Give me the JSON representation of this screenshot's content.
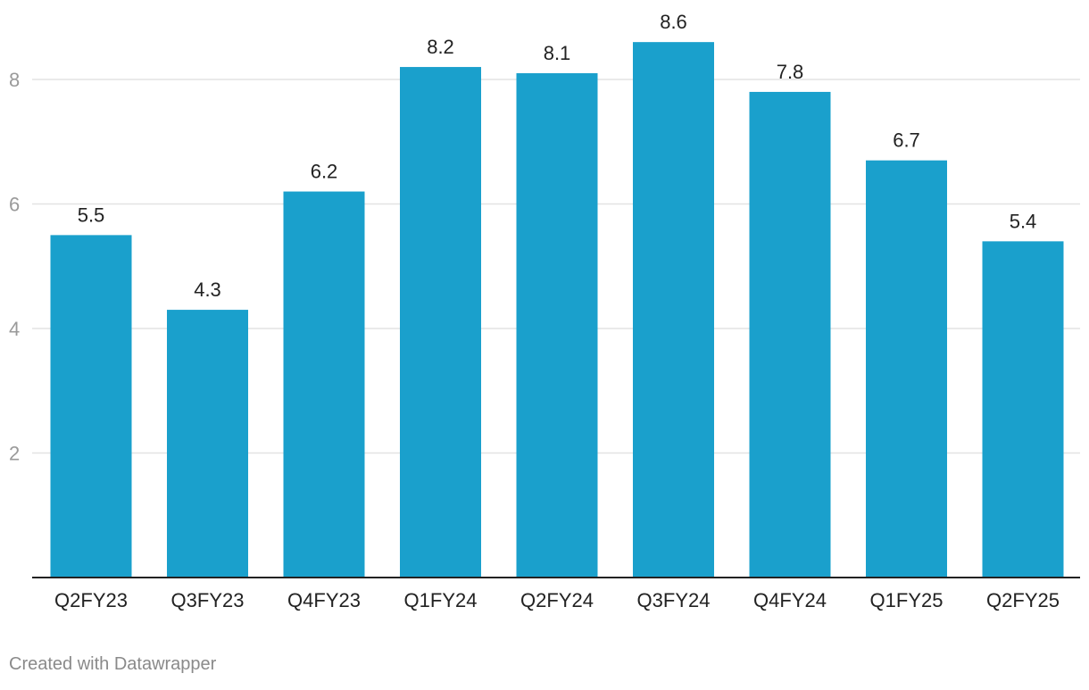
{
  "chart_data": {
    "type": "bar",
    "title": "",
    "xlabel": "",
    "ylabel": "",
    "categories": [
      "Q2FY23",
      "Q3FY23",
      "Q4FY23",
      "Q1FY24",
      "Q2FY24",
      "Q3FY24",
      "Q4FY24",
      "Q1FY25",
      "Q2FY25"
    ],
    "values": [
      5.5,
      4.3,
      6.2,
      8.2,
      8.1,
      8.6,
      7.8,
      6.7,
      5.4
    ],
    "ylim": [
      0,
      9.2
    ],
    "yticks": [
      2,
      4,
      6,
      8
    ],
    "grid": true,
    "legend": "none",
    "colors": {
      "bar": "#1aa0cc",
      "grid": "#e3e3e3",
      "axis": "#222222",
      "tick_label": "#9a9a9a",
      "value_label": "#222222"
    }
  },
  "footer": {
    "credit": "Created with Datawrapper"
  }
}
